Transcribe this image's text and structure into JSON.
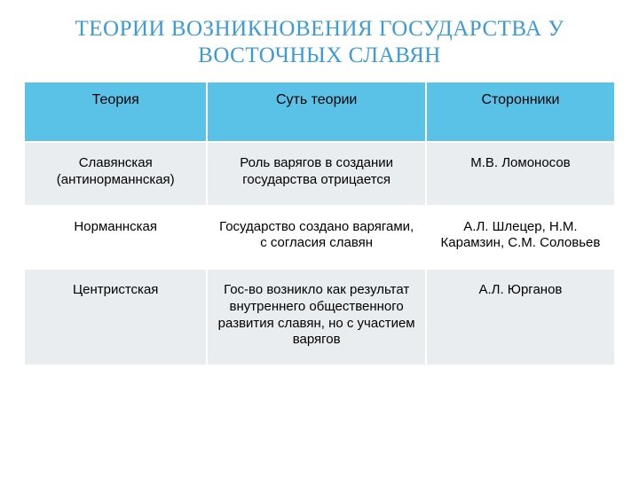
{
  "title": "ТЕОРИИ ВОЗНИКНОВЕНИЯ ГОСУДАРСТВА У ВОСТОЧНЫХ СЛАВЯН",
  "title_color": "#3c9ad6",
  "title_fontsize": 25,
  "table": {
    "header_bg": "#5bc2e7",
    "header_color": "#000000",
    "row_bg_alt": [
      "#e9edf0",
      "#ffffff"
    ],
    "cell_color": "#000000",
    "border_color": "#ffffff",
    "fontsize_header": 16,
    "fontsize_body": 15,
    "columns": [
      "Теория",
      "Суть теории",
      "Сторонники"
    ],
    "rows": [
      [
        "Славянская (антинорманнская)",
        "Роль варягов в создании государства отрицается",
        "М.В. Ломоносов"
      ],
      [
        "Норманнская",
        "Государство создано варягами, с согласия славян",
        "А.Л. Шлецер, Н.М. Карамзин, С.М. Соловьев"
      ],
      [
        "Центристская",
        "Гос-во возникло как результат внутреннего общественного развития славян, но с участием варягов",
        "А.Л. Юрганов"
      ]
    ]
  }
}
